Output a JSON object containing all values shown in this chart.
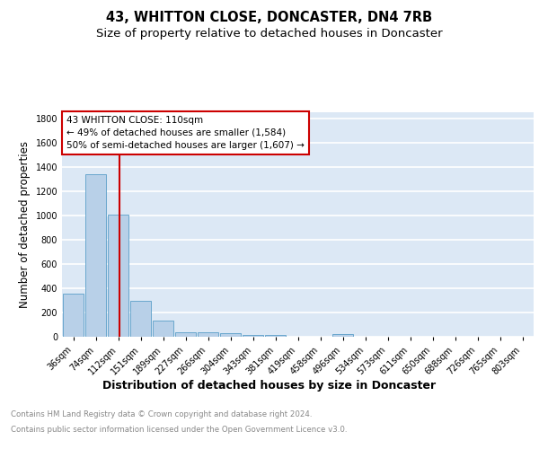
{
  "title": "43, WHITTON CLOSE, DONCASTER, DN4 7RB",
  "subtitle": "Size of property relative to detached houses in Doncaster",
  "xlabel": "Distribution of detached houses by size in Doncaster",
  "ylabel": "Number of detached properties",
  "footnote1": "Contains HM Land Registry data © Crown copyright and database right 2024.",
  "footnote2": "Contains public sector information licensed under the Open Government Licence v3.0.",
  "bar_labels": [
    "36sqm",
    "74sqm",
    "112sqm",
    "151sqm",
    "189sqm",
    "227sqm",
    "266sqm",
    "304sqm",
    "343sqm",
    "381sqm",
    "419sqm",
    "458sqm",
    "496sqm",
    "534sqm",
    "573sqm",
    "611sqm",
    "650sqm",
    "688sqm",
    "726sqm",
    "765sqm",
    "803sqm"
  ],
  "bar_values": [
    355,
    1340,
    1005,
    295,
    130,
    40,
    37,
    28,
    18,
    15,
    0,
    0,
    20,
    0,
    0,
    0,
    0,
    0,
    0,
    0,
    0
  ],
  "bar_color": "#b8d0e8",
  "bar_edge_color": "#5b9fc8",
  "background_color": "#dce8f5",
  "grid_color": "#ffffff",
  "annotation_text_line1": "43 WHITTON CLOSE: 110sqm",
  "annotation_text_line2": "← 49% of detached houses are smaller (1,584)",
  "annotation_text_line3": "50% of semi-detached houses are larger (1,607) →",
  "vline_x": 2.05,
  "vline_color": "#cc0000",
  "ylim": [
    0,
    1850
  ],
  "yticks": [
    0,
    200,
    400,
    600,
    800,
    1000,
    1200,
    1400,
    1600,
    1800
  ],
  "title_fontsize": 10.5,
  "subtitle_fontsize": 9.5,
  "ylabel_fontsize": 8.5,
  "xlabel_fontsize": 9,
  "tick_fontsize": 7,
  "annot_fontsize": 7.5
}
